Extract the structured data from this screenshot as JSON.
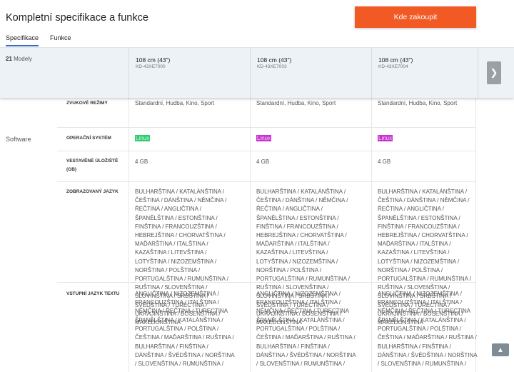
{
  "header": {
    "title": "Kompletní specifikace a funkce",
    "buy_label": "Kde zakoupit"
  },
  "tabs": [
    {
      "label": "Specifikace",
      "active": true
    },
    {
      "label": "Funkce",
      "active": false
    }
  ],
  "models": {
    "count": "21",
    "count_label": "Modely",
    "items": [
      {
        "title": "108 cm (43\")",
        "code": "KD-43XE7000"
      },
      {
        "title": "108 cm (43\")",
        "code": "KD-43XE7003"
      },
      {
        "title": "108 cm (43\")",
        "code": "KD-43XE7004"
      }
    ],
    "next_icon": "chevron-right-icon"
  },
  "specs": {
    "sound_modes_label": "ZVUKOVÉ REŽIMY",
    "sound_modes_value": "Standardní, Hudba, Kino, Sport",
    "software_section": "Software",
    "os_label": "OPERAČNÍ SYSTÉM",
    "os_value": "Linux",
    "storage_label": "VESTAVĚNÉ ÚLOŽIŠTĚ (GB)",
    "storage_value": "4 GB",
    "display_lang_label": "ZOBRAZOVANÝ JAZYK",
    "display_lang_value": "BULHARŠTINA / KATALÁNŠTINA / ČEŠTINA / DÁNŠTINA / NĚMČINA / ŘEČTINA / ANGLIČTINA / ŠPANĚLŠTINA / ESTONŠTINA / FINŠTINA / FRANCOUZŠTINA / HEBREJŠTINA / CHORVATŠTINA / MAĎARŠTINA / ITALŠTINA / KAZAŠTINA / LITEVŠTINA / LOTYŠTINA / NIZOZEMŠTINA / NORŠTINA / POLŠTINA / PORTUGALŠTINA / RUMUNŠTINA / RUŠTINA / SLOVENŠTINA / SLOVINŠTINA / SRBŠTINA / ŠVÉDŠTINA / TURECTINA / UKRAJINŠTINA / BOSENŠTINA / MAKEDONŠTINA",
    "input_lang_label": "VSTUPNÍ JAZYK TEXTU",
    "input_lang_value_overlap": "ANGLIČTINA / NIZOZEMŠTINA / FRANCOUZŠTINA / ITALŠTINA / NĚMČINA / ŘEČTINA / TURECTINA",
    "input_lang_value": "ŠPANĚLŠTINA / KATALÁNŠTINA / PORTUGALŠTINA / POLŠTINA / ČEŠTINA / MAĎARŠTINA / RUŠTINA / BULHARŠTINA / FINŠTINA / DÁNŠTINA / ŠVÉDŠTINA / NORŠTINA / SLOVENŠTINA / RUMUNŠTINA /"
  },
  "scroll_top_icon": "chevron-up-icon"
}
